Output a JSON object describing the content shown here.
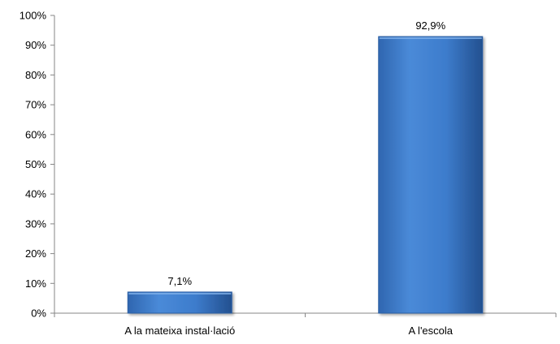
{
  "chart_data": {
    "type": "bar",
    "categories": [
      "A la mateixa instal·lació",
      "A l'escola"
    ],
    "values": [
      7.1,
      92.9
    ],
    "data_labels": [
      "7,1%",
      "92,9%"
    ],
    "ylim": [
      0,
      100
    ],
    "yticks": [
      "0%",
      "10%",
      "20%",
      "30%",
      "40%",
      "50%",
      "60%",
      "70%",
      "80%",
      "90%",
      "100%"
    ],
    "grid": false,
    "legend": "none",
    "bar_color": "#3f7fcf",
    "bar_color_dark": "#2c5fa3"
  }
}
